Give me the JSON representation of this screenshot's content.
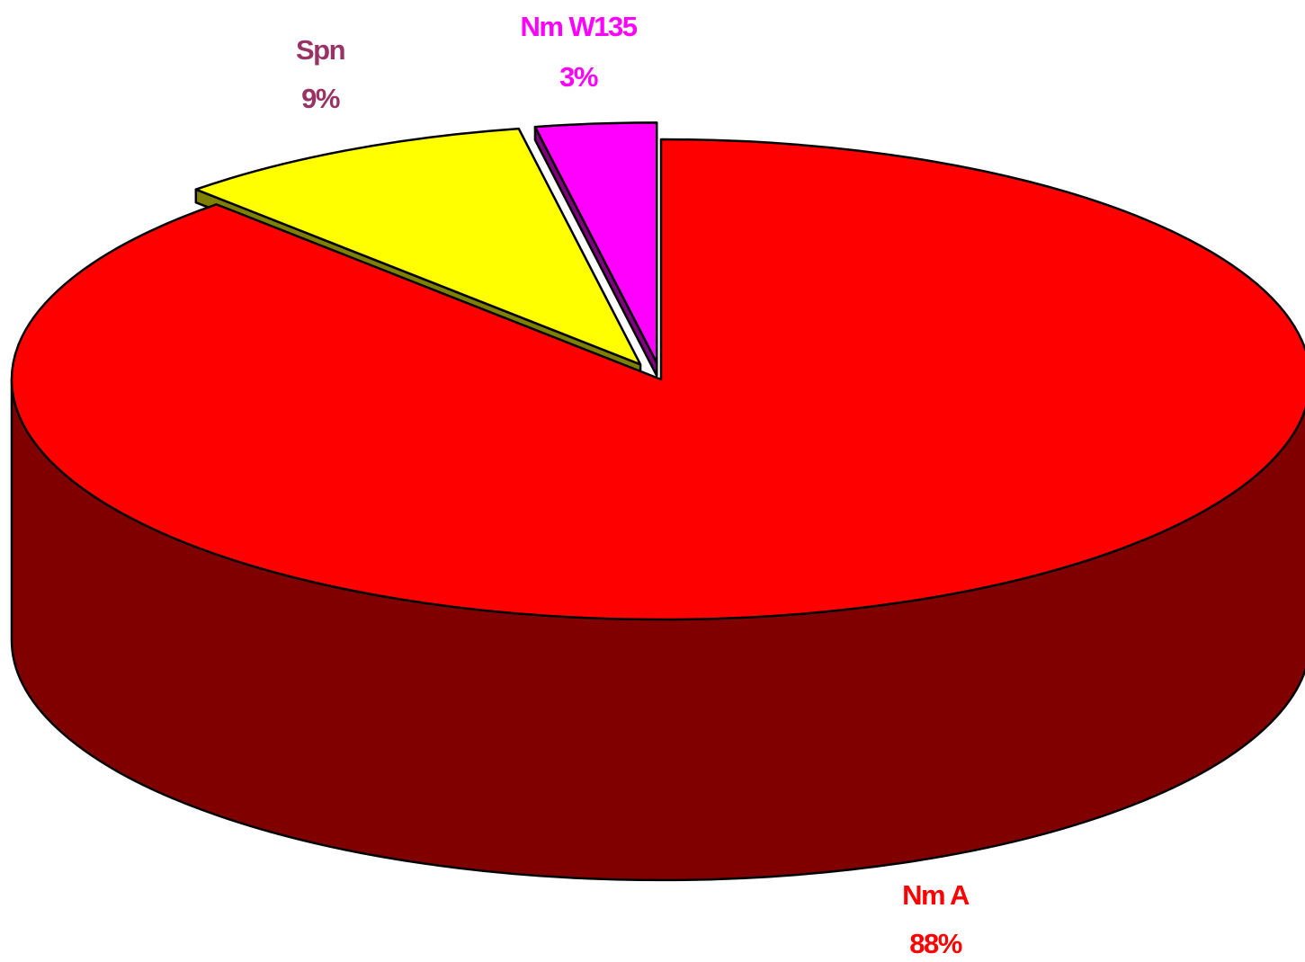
{
  "chart_data": {
    "type": "pie",
    "threed": true,
    "categories": [
      "Nm A",
      "Spn",
      "Nm W135"
    ],
    "values": [
      88,
      9,
      3
    ],
    "value_labels": [
      "88%",
      "9%",
      "3%"
    ],
    "colors": [
      "#ff0000",
      "#ffff00",
      "#ff00ff"
    ]
  }
}
